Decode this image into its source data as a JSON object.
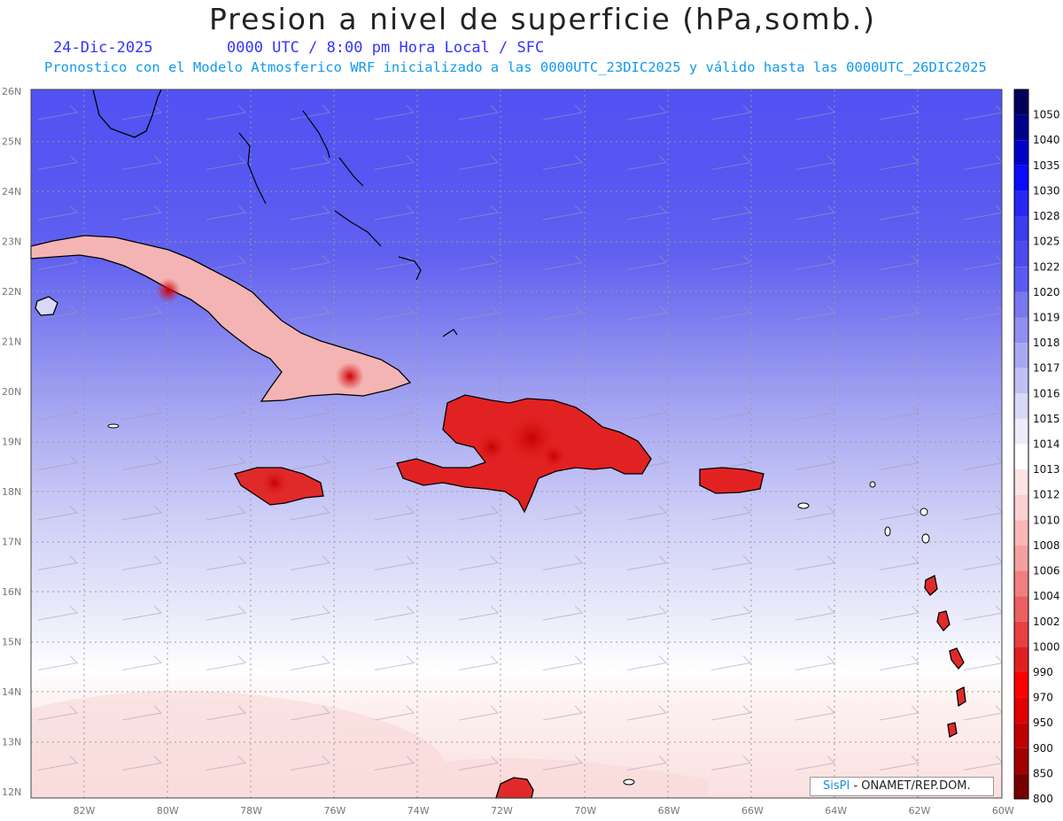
{
  "header": {
    "title": "Presion a nivel de superficie (hPa,somb.)",
    "date": "24-Dic-2025",
    "validity": "0000 UTC / 8:00 pm Hora Local / SFC",
    "forecast_note": "Pronostico con el Modelo Atmosferico WRF inicializado a las 0000UTC_23DIC2025 y válido hasta las  0000UTC_26DIC2025"
  },
  "map": {
    "lat_labels": [
      "26N",
      "25N",
      "24N",
      "23N",
      "22N",
      "21N",
      "20N",
      "19N",
      "18N",
      "17N",
      "16N",
      "15N",
      "14N",
      "13N",
      "12N"
    ],
    "lon_labels": [
      "82W",
      "80W",
      "78W",
      "76W",
      "74W",
      "72W",
      "70W",
      "68W",
      "66W",
      "64W",
      "62W",
      "60W"
    ],
    "high_pressure_color": "#5050f2",
    "low_pressure_color": "#e01a1a",
    "islands": [
      "Cuba",
      "Jamaica",
      "Hispaniola",
      "Puerto Rico",
      "Bahamas",
      "Lesser Antilles"
    ]
  },
  "colorbar": {
    "levels": [
      "1050",
      "1040",
      "1035",
      "1030",
      "1028",
      "1025",
      "1022",
      "1020",
      "1019",
      "1018",
      "1017",
      "1016",
      "1015",
      "1014",
      "1013",
      "1012",
      "1010",
      "1008",
      "1006",
      "1004",
      "1002",
      "1000",
      "990",
      "970",
      "950",
      "900",
      "850",
      "800"
    ],
    "colors": [
      "#00005a",
      "#00008c",
      "#0000c8",
      "#0a0aff",
      "#2828f5",
      "#3c3cf0",
      "#4b4bf0",
      "#5a5af0",
      "#7878f0",
      "#9090f0",
      "#a8a8f2",
      "#c0c0f5",
      "#d8d8f8",
      "#ececfb",
      "#ffffff",
      "#fde4e4",
      "#fbd0d0",
      "#f8b8b8",
      "#f5a0a0",
      "#f08080",
      "#eb6060",
      "#e84040",
      "#e02020",
      "#ff0000",
      "#e00000",
      "#c00000",
      "#a00000",
      "#780000"
    ]
  },
  "credit": {
    "brand": "SisPI",
    "org": " - ONAMET/REP.DOM."
  }
}
